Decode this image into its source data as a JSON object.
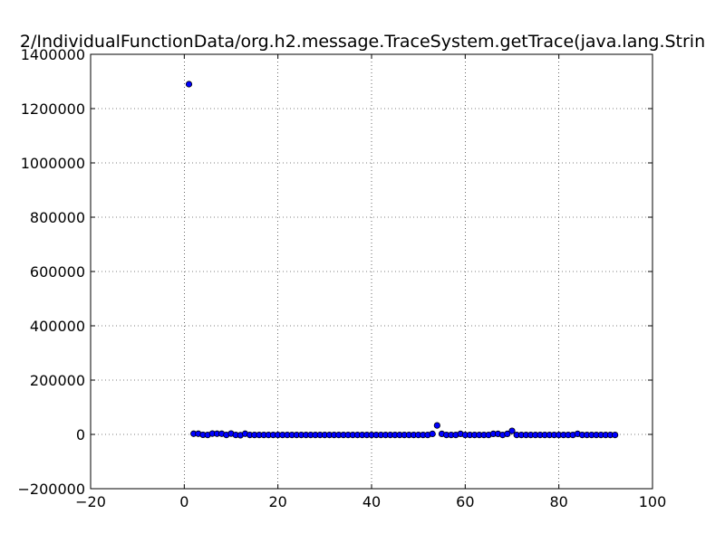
{
  "chart_data": {
    "type": "scatter",
    "title": "2/IndividualFunctionData/org.h2.message.TraceSystem.getTrace(java.lang.Strin",
    "xlabel": "",
    "ylabel": "",
    "xlim": [
      -20,
      100
    ],
    "ylim": [
      -200000,
      1400000
    ],
    "x_ticks": [
      -20,
      0,
      20,
      40,
      60,
      80,
      100
    ],
    "x_tick_labels": [
      "−20",
      "0",
      "20",
      "40",
      "60",
      "80",
      "100"
    ],
    "y_ticks": [
      -200000,
      0,
      200000,
      400000,
      600000,
      800000,
      1000000,
      1200000,
      1400000
    ],
    "y_tick_labels": [
      "−200000",
      "0",
      "200000",
      "400000",
      "600000",
      "800000",
      "1000000",
      "1200000",
      "1400000"
    ],
    "grid": true,
    "marker_color": "#0000ff",
    "marker_edge_color": "#000000",
    "points": [
      [
        1,
        1290000
      ],
      [
        2,
        2500
      ],
      [
        3,
        2500
      ],
      [
        4,
        -1500
      ],
      [
        5,
        -2000
      ],
      [
        6,
        3000
      ],
      [
        7,
        2500
      ],
      [
        8,
        2500
      ],
      [
        9,
        -2000
      ],
      [
        10,
        3000
      ],
      [
        11,
        -2000
      ],
      [
        12,
        -3000
      ],
      [
        13,
        2500
      ],
      [
        14,
        -2000
      ],
      [
        15,
        -2000
      ],
      [
        16,
        -2000
      ],
      [
        17,
        -2000
      ],
      [
        18,
        -2000
      ],
      [
        19,
        -2000
      ],
      [
        20,
        -2000
      ],
      [
        21,
        -2000
      ],
      [
        22,
        -2000
      ],
      [
        23,
        -2000
      ],
      [
        24,
        -2000
      ],
      [
        25,
        -2000
      ],
      [
        26,
        -2000
      ],
      [
        27,
        -2000
      ],
      [
        28,
        -2000
      ],
      [
        29,
        -2000
      ],
      [
        30,
        -2000
      ],
      [
        31,
        -2000
      ],
      [
        32,
        -2000
      ],
      [
        33,
        -2000
      ],
      [
        34,
        -2000
      ],
      [
        35,
        -2000
      ],
      [
        36,
        -2000
      ],
      [
        37,
        -2000
      ],
      [
        38,
        -2000
      ],
      [
        39,
        -2000
      ],
      [
        40,
        -2000
      ],
      [
        41,
        -2000
      ],
      [
        42,
        -2000
      ],
      [
        43,
        -2000
      ],
      [
        44,
        -2000
      ],
      [
        45,
        -2000
      ],
      [
        46,
        -2000
      ],
      [
        47,
        -2000
      ],
      [
        48,
        -2000
      ],
      [
        49,
        -2000
      ],
      [
        50,
        -2000
      ],
      [
        51,
        -2000
      ],
      [
        52,
        -2000
      ],
      [
        53,
        2000
      ],
      [
        54,
        33000
      ],
      [
        55,
        2000
      ],
      [
        56,
        -2000
      ],
      [
        57,
        -2000
      ],
      [
        58,
        -2000
      ],
      [
        59,
        2000
      ],
      [
        60,
        -2000
      ],
      [
        61,
        -2000
      ],
      [
        62,
        -2000
      ],
      [
        63,
        -2000
      ],
      [
        64,
        -2000
      ],
      [
        65,
        -2000
      ],
      [
        66,
        2000
      ],
      [
        67,
        2000
      ],
      [
        68,
        -2000
      ],
      [
        69,
        2000
      ],
      [
        70,
        13000
      ],
      [
        71,
        -2000
      ],
      [
        72,
        -2000
      ],
      [
        73,
        -2000
      ],
      [
        74,
        -2000
      ],
      [
        75,
        -2000
      ],
      [
        76,
        -2000
      ],
      [
        77,
        -2000
      ],
      [
        78,
        -2000
      ],
      [
        79,
        -2000
      ],
      [
        80,
        -2000
      ],
      [
        81,
        -2000
      ],
      [
        82,
        -2000
      ],
      [
        83,
        -2000
      ],
      [
        84,
        2000
      ],
      [
        85,
        -2000
      ],
      [
        86,
        -2000
      ],
      [
        87,
        -2000
      ],
      [
        88,
        -2000
      ],
      [
        89,
        -2000
      ],
      [
        90,
        -2000
      ],
      [
        91,
        -2000
      ],
      [
        92,
        -2000
      ]
    ]
  }
}
